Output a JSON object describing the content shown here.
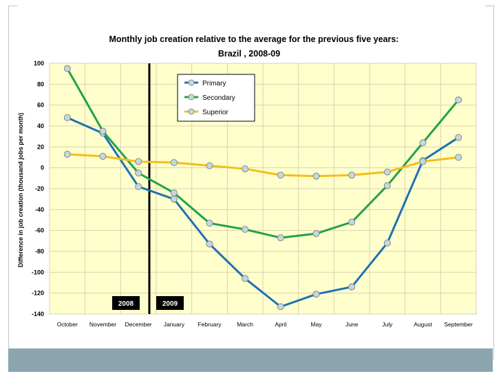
{
  "chart_data": {
    "type": "line",
    "title": "Monthly job creation relative to the average for the previous five years:",
    "subtitle": "Brazil , 2008-09",
    "ylabel": "Difference in job creation (thousand jobs per month)",
    "xlabel": "",
    "ylim": [
      -140,
      100
    ],
    "yticks": [
      100,
      80,
      60,
      40,
      20,
      0,
      -20,
      -40,
      -60,
      -80,
      -100,
      -120,
      -140
    ],
    "categories": [
      "October",
      "November",
      "December",
      "January",
      "February",
      "March",
      "April",
      "May",
      "June",
      "July",
      "August",
      "September"
    ],
    "series": [
      {
        "name": "Primary",
        "color": "#1f6fb5",
        "values": [
          48,
          33,
          -18,
          -30,
          -73,
          -106,
          -133,
          -121,
          -114,
          -72,
          7,
          29
        ]
      },
      {
        "name": "Secondary",
        "color": "#22a14a",
        "values": [
          95,
          35,
          -5,
          -24,
          -53,
          -59,
          -67,
          -63,
          -52,
          -17,
          24,
          65
        ]
      },
      {
        "name": "Superior",
        "color": "#f6bd1a",
        "values": [
          13,
          11,
          6,
          5,
          2,
          -1,
          -7,
          -8,
          -7,
          -4,
          6,
          10
        ]
      }
    ],
    "divider_after": "December",
    "year_labels": [
      "2008",
      "2009"
    ],
    "legend_position": "top-center"
  },
  "colors": {
    "plot_background": "#ffffcc",
    "grid": "#d8d2b0",
    "axis": "#999999",
    "divider": "#000000",
    "year_box": "#000000",
    "marker_fill": "#c9d7da",
    "marker_stroke": "#7a8a90",
    "footer_bar": "#8aa5ae"
  }
}
